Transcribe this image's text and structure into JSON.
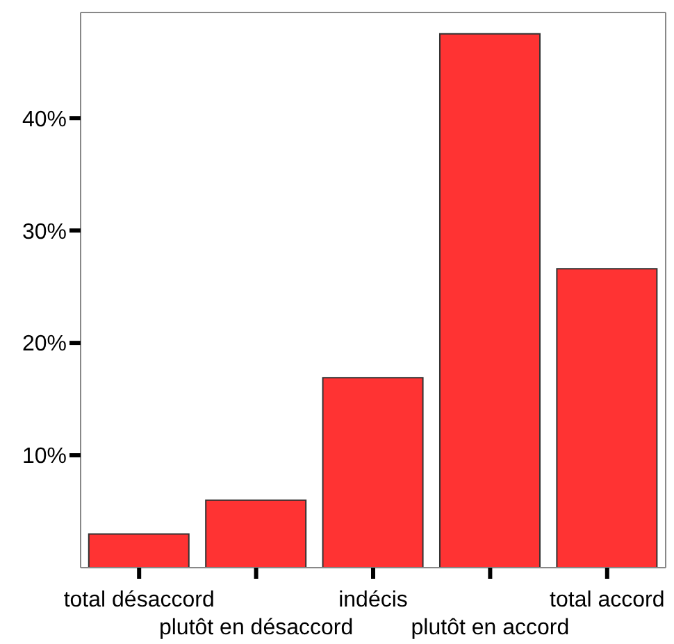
{
  "chart_data": {
    "type": "bar",
    "categories": [
      "total désaccord",
      "plutôt en désaccord",
      "indécis",
      "plutôt en accord",
      "total accord"
    ],
    "values": [
      3.0,
      6.0,
      16.9,
      47.5,
      26.6
    ],
    "color": "#ff3333",
    "ylim": [
      0,
      49.4
    ],
    "yticks": [
      {
        "value": 10,
        "label": "10%"
      },
      {
        "value": 20,
        "label": "20%"
      },
      {
        "value": 30,
        "label": "30%"
      },
      {
        "value": 40,
        "label": "40%"
      }
    ],
    "grid": false,
    "legend": false
  }
}
